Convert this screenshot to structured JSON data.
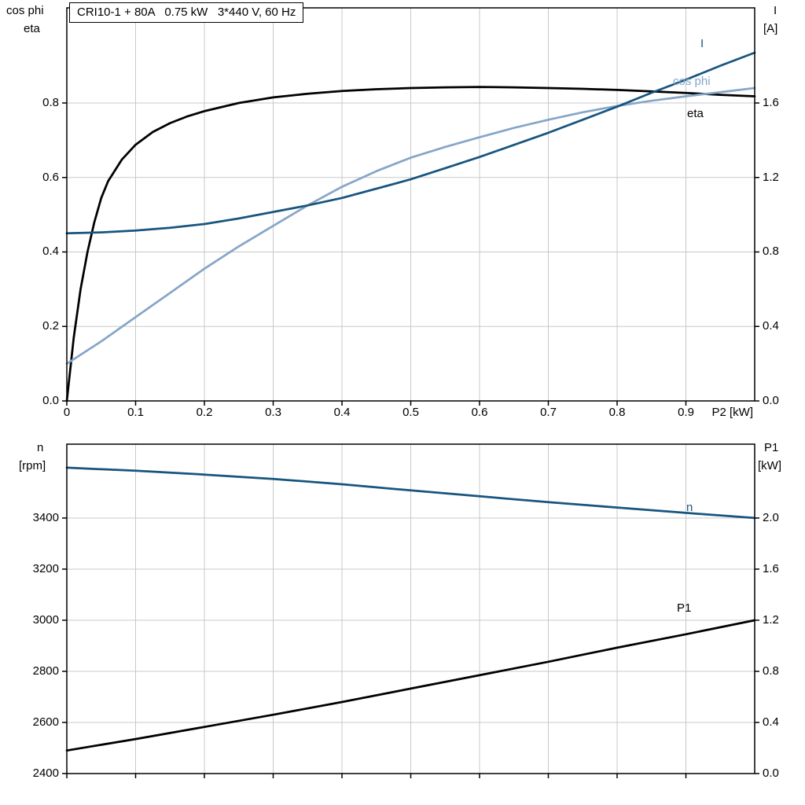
{
  "title": "CRI10-1 + 80A   0.75 kW   3*440 V, 60 Hz",
  "colors": {
    "grid": "#c8c8c8",
    "frame": "#000000",
    "dark_blue": "#17557f",
    "light_blue": "#86a6c8",
    "black": "#000000"
  },
  "chart_data": [
    {
      "type": "line",
      "title": "CRI10-1 + 80A   0.75 kW   3*440 V, 60 Hz",
      "xlabel": "P2 [kW]",
      "xlim": [
        0,
        1.0
      ],
      "x_tick_values": [
        0,
        0.1,
        0.2,
        0.3,
        0.4,
        0.5,
        0.6,
        0.7,
        0.8,
        0.9
      ],
      "x_tick_labels": [
        "0",
        "0.1",
        "0.2",
        "0.3",
        "0.4",
        "0.5",
        "0.6",
        "0.7",
        "0.8",
        "0.9"
      ],
      "show_x_tick_labels": true,
      "grid": true,
      "left_axis": {
        "name_lines": [
          "cos phi",
          "eta"
        ],
        "lim": [
          0,
          1.0554
        ],
        "tick_values": [
          0.0,
          0.2,
          0.4,
          0.6,
          0.8
        ],
        "tick_labels": [
          "0.0",
          "0.2",
          "0.4",
          "0.6",
          "0.8"
        ]
      },
      "right_axis": {
        "name_lines": [
          "I",
          "[A]"
        ],
        "lim": [
          0,
          2.1108
        ],
        "tick_values": [
          0.0,
          0.4,
          0.8,
          1.2,
          1.6
        ],
        "tick_labels": [
          "0.0",
          "0.4",
          "0.8",
          "1.2",
          "1.6"
        ]
      },
      "series": [
        {
          "name": "eta",
          "axis": "left",
          "color": "#000000",
          "x": [
            0,
            0.01,
            0.02,
            0.03,
            0.04,
            0.05,
            0.06,
            0.08,
            0.1,
            0.125,
            0.15,
            0.175,
            0.2,
            0.25,
            0.3,
            0.35,
            0.4,
            0.45,
            0.5,
            0.55,
            0.6,
            0.65,
            0.7,
            0.75,
            0.8,
            0.85,
            0.9,
            0.95,
            1.0
          ],
          "y": [
            0,
            0.17,
            0.3,
            0.4,
            0.48,
            0.545,
            0.59,
            0.648,
            0.688,
            0.722,
            0.746,
            0.764,
            0.778,
            0.8,
            0.815,
            0.825,
            0.832,
            0.837,
            0.84,
            0.842,
            0.843,
            0.842,
            0.84,
            0.838,
            0.835,
            0.831,
            0.827,
            0.822,
            0.818
          ]
        },
        {
          "name": "cos phi",
          "axis": "left",
          "color": "#86a6c8",
          "x": [
            0,
            0.05,
            0.1,
            0.15,
            0.2,
            0.25,
            0.3,
            0.35,
            0.4,
            0.45,
            0.5,
            0.55,
            0.6,
            0.65,
            0.7,
            0.75,
            0.8,
            0.85,
            0.9,
            0.95,
            1.0
          ],
          "y": [
            0.1,
            0.16,
            0.225,
            0.29,
            0.355,
            0.415,
            0.47,
            0.525,
            0.575,
            0.617,
            0.653,
            0.682,
            0.708,
            0.733,
            0.755,
            0.775,
            0.792,
            0.806,
            0.818,
            0.829,
            0.84
          ]
        },
        {
          "name": "I",
          "axis": "right",
          "color": "#17557f",
          "x": [
            0,
            0.05,
            0.1,
            0.15,
            0.2,
            0.25,
            0.3,
            0.35,
            0.4,
            0.45,
            0.5,
            0.55,
            0.6,
            0.65,
            0.7,
            0.75,
            0.8,
            0.85,
            0.9,
            0.95,
            1.0
          ],
          "y": [
            0.9,
            0.905,
            0.915,
            0.93,
            0.95,
            0.98,
            1.015,
            1.05,
            1.09,
            1.14,
            1.19,
            1.25,
            1.31,
            1.375,
            1.44,
            1.51,
            1.58,
            1.655,
            1.725,
            1.8,
            1.87
          ]
        }
      ]
    },
    {
      "type": "line",
      "title": "",
      "xlabel": "",
      "xlim": [
        0,
        1.0
      ],
      "x_tick_values": [
        0,
        0.1,
        0.2,
        0.3,
        0.4,
        0.5,
        0.6,
        0.7,
        0.8,
        0.9
      ],
      "x_tick_labels": [
        "",
        "",
        "",
        "",
        "",
        "",
        "",
        "",
        "",
        ""
      ],
      "show_x_tick_labels": false,
      "grid": true,
      "left_axis": {
        "name_lines": [
          "n",
          "[rpm]"
        ],
        "lim": [
          2400,
          3689
        ],
        "tick_values": [
          2400,
          2600,
          2800,
          3000,
          3200,
          3400
        ],
        "tick_labels": [
          "2400",
          "2600",
          "2800",
          "3000",
          "3200",
          "3400"
        ]
      },
      "right_axis": {
        "name_lines": [
          "P1",
          "[kW]"
        ],
        "lim": [
          0,
          2.578
        ],
        "tick_values": [
          0.0,
          0.4,
          0.8,
          1.2,
          1.6,
          2.0
        ],
        "tick_labels": [
          "0.0",
          "0.4",
          "0.8",
          "1.2",
          "1.6",
          "2.0"
        ]
      },
      "series": [
        {
          "name": "n",
          "axis": "left",
          "color": "#17557f",
          "x": [
            0,
            0.1,
            0.2,
            0.3,
            0.4,
            0.5,
            0.6,
            0.7,
            0.8,
            0.9,
            1.0
          ],
          "y": [
            3597,
            3585,
            3570,
            3553,
            3532,
            3508,
            3485,
            3462,
            3441,
            3420,
            3400
          ]
        },
        {
          "name": "P1",
          "axis": "right",
          "color": "#000000",
          "x": [
            0,
            0.1,
            0.2,
            0.3,
            0.4,
            0.5,
            0.6,
            0.7,
            0.8,
            0.9,
            1.0
          ],
          "y": [
            0.18,
            0.27,
            0.365,
            0.46,
            0.56,
            0.665,
            0.77,
            0.875,
            0.985,
            1.09,
            1.2
          ]
        }
      ]
    }
  ]
}
